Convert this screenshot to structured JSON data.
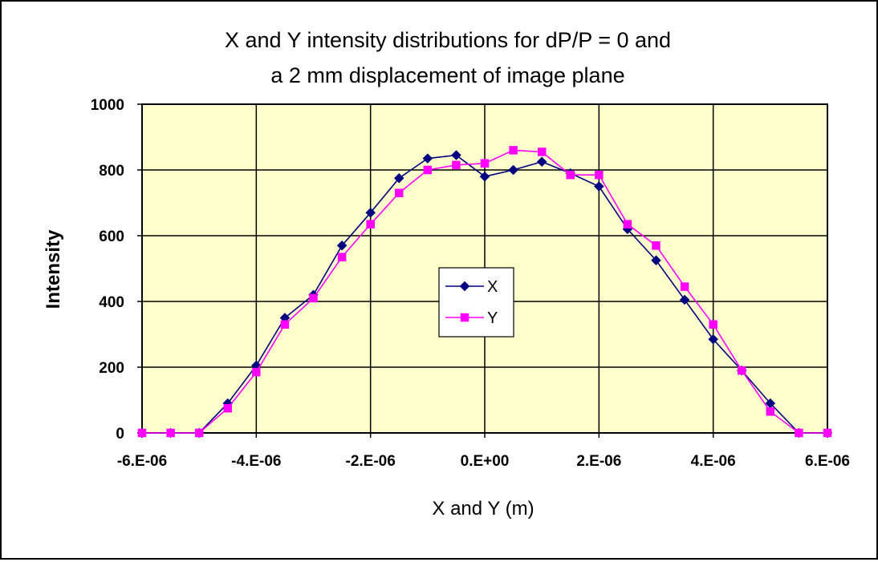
{
  "chart_data": {
    "type": "line",
    "title": "X and Y intensity distributions for dP/P = 0 and",
    "subtitle": "a  2 mm displacement of image plane",
    "xlabel": "X and Y (m)",
    "ylabel": "Intensity",
    "xlim": [
      -6e-06,
      6e-06
    ],
    "ylim": [
      0,
      1000
    ],
    "x_ticks": [
      -6e-06,
      -4e-06,
      -2e-06,
      0,
      2e-06,
      4e-06,
      6e-06
    ],
    "x_tick_labels": [
      "-6.E-06",
      "-4.E-06",
      "-2.E-06",
      "0.E+00",
      "2.E-06",
      "4.E-06",
      "6.E-06"
    ],
    "y_ticks": [
      0,
      200,
      400,
      600,
      800,
      1000
    ],
    "y_tick_labels": [
      "0",
      "200",
      "400",
      "600",
      "800",
      "1000"
    ],
    "grid": true,
    "plot_background": "#ffffcc",
    "legend_position": "center",
    "series": [
      {
        "name": "X",
        "color": "#000080",
        "marker": "diamond",
        "x": [
          -6e-06,
          -5.5e-06,
          -5e-06,
          -4.5e-06,
          -4e-06,
          -3.5e-06,
          -3e-06,
          -2.5e-06,
          -2e-06,
          -1.5e-06,
          -1e-06,
          -5e-07,
          0,
          5e-07,
          1e-06,
          1.5e-06,
          2e-06,
          2.5e-06,
          3e-06,
          3.5e-06,
          4e-06,
          4.5e-06,
          5e-06,
          5.5e-06,
          6e-06
        ],
        "y": [
          0,
          0,
          0,
          90,
          205,
          350,
          420,
          570,
          670,
          775,
          835,
          845,
          780,
          800,
          825,
          790,
          750,
          620,
          525,
          405,
          285,
          190,
          90,
          0,
          0
        ]
      },
      {
        "name": "Y",
        "color": "#ff00ff",
        "marker": "square",
        "x": [
          -6e-06,
          -5.5e-06,
          -5e-06,
          -4.5e-06,
          -4e-06,
          -3.5e-06,
          -3e-06,
          -2.5e-06,
          -2e-06,
          -1.5e-06,
          -1e-06,
          -5e-07,
          0,
          5e-07,
          1e-06,
          1.5e-06,
          2e-06,
          2.5e-06,
          3e-06,
          3.5e-06,
          4e-06,
          4.5e-06,
          5e-06,
          5.5e-06,
          6e-06
        ],
        "y": [
          0,
          0,
          0,
          75,
          185,
          330,
          410,
          535,
          635,
          730,
          800,
          815,
          820,
          860,
          855,
          785,
          785,
          635,
          570,
          445,
          330,
          190,
          65,
          0,
          0
        ]
      }
    ]
  }
}
